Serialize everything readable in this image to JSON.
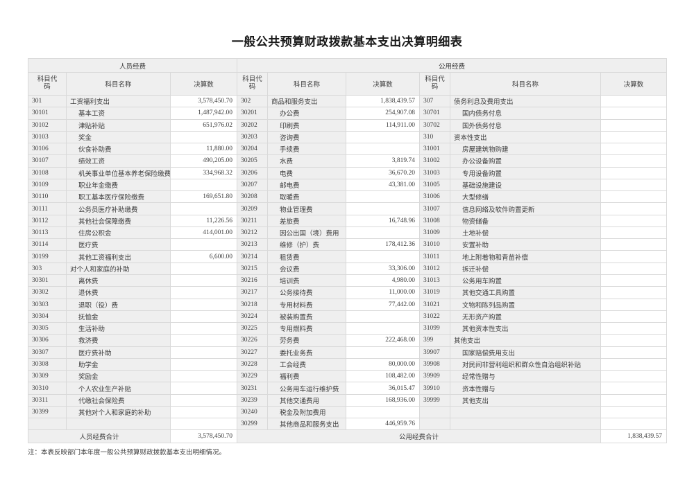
{
  "title": "一般公共预算财政拨款基本支出决算明细表",
  "note": "注：本表反映部门本年度一般公共预算财政拨款基本支出明细情况。",
  "colors": {
    "cell_gray": "#efefef",
    "border": "#d9d9d9",
    "text": "#3c3c3c"
  },
  "table": {
    "sections": [
      {
        "label": "人员经费"
      },
      {
        "label": "公用经费"
      }
    ],
    "column_headers": {
      "code": "科目代码",
      "name": "科目名称",
      "value": "决算数"
    },
    "personnel_rows": [
      {
        "code": "301",
        "name": "工资福利支出",
        "value": "3,578,450.70"
      },
      {
        "code": "30101",
        "name": "基本工资",
        "value": "1,487,942.00"
      },
      {
        "code": "30102",
        "name": "津贴补贴",
        "value": "651,976.02"
      },
      {
        "code": "30103",
        "name": "奖金",
        "value": ""
      },
      {
        "code": "30106",
        "name": "伙食补助费",
        "value": "11,880.00"
      },
      {
        "code": "30107",
        "name": "绩效工资",
        "value": "490,205.00"
      },
      {
        "code": "30108",
        "name": "机关事业单位基本养老保险缴费",
        "value": "334,968.32"
      },
      {
        "code": "30109",
        "name": "职业年金缴费",
        "value": ""
      },
      {
        "code": "30110",
        "name": "职工基本医疗保险缴费",
        "value": "169,651.80"
      },
      {
        "code": "30111",
        "name": "公务员医疗补助缴费",
        "value": ""
      },
      {
        "code": "30112",
        "name": "其他社会保障缴费",
        "value": "11,226.56"
      },
      {
        "code": "30113",
        "name": "住房公积金",
        "value": "414,001.00"
      },
      {
        "code": "30114",
        "name": "医疗费",
        "value": ""
      },
      {
        "code": "30199",
        "name": "其他工资福利支出",
        "value": "6,600.00"
      },
      {
        "code": "303",
        "name": "对个人和家庭的补助",
        "value": ""
      },
      {
        "code": "30301",
        "name": "离休费",
        "value": ""
      },
      {
        "code": "30302",
        "name": "退休费",
        "value": ""
      },
      {
        "code": "30303",
        "name": "退职（役）费",
        "value": ""
      },
      {
        "code": "30304",
        "name": "抚恤金",
        "value": ""
      },
      {
        "code": "30305",
        "name": "生活补助",
        "value": ""
      },
      {
        "code": "30306",
        "name": "救济费",
        "value": ""
      },
      {
        "code": "30307",
        "name": "医疗费补助",
        "value": ""
      },
      {
        "code": "30308",
        "name": "助学金",
        "value": ""
      },
      {
        "code": "30309",
        "name": "奖励金",
        "value": ""
      },
      {
        "code": "30310",
        "name": "个人农业生产补贴",
        "value": ""
      },
      {
        "code": "30311",
        "name": "代缴社会保险费",
        "value": ""
      },
      {
        "code": "30399",
        "name": "其他对个人和家庭的补助",
        "value": ""
      },
      {
        "code": "",
        "name": "",
        "value": ""
      }
    ],
    "public_left_rows": [
      {
        "code": "302",
        "name": "商品和服务支出",
        "value": "1,838,439.57"
      },
      {
        "code": "30201",
        "name": "办公费",
        "value": "254,907.08"
      },
      {
        "code": "30202",
        "name": "印刷费",
        "value": "114,911.00"
      },
      {
        "code": "30203",
        "name": "咨询费",
        "value": ""
      },
      {
        "code": "30204",
        "name": "手续费",
        "value": ""
      },
      {
        "code": "30205",
        "name": "水费",
        "value": "3,819.74"
      },
      {
        "code": "30206",
        "name": "电费",
        "value": "36,670.20"
      },
      {
        "code": "30207",
        "name": "邮电费",
        "value": "43,381.00"
      },
      {
        "code": "30208",
        "name": "取暖费",
        "value": ""
      },
      {
        "code": "30209",
        "name": "物业管理费",
        "value": ""
      },
      {
        "code": "30211",
        "name": "差旅费",
        "value": "16,748.96"
      },
      {
        "code": "30212",
        "name": "因公出国（境）费用",
        "value": ""
      },
      {
        "code": "30213",
        "name": "维修（护）费",
        "value": "178,412.36"
      },
      {
        "code": "30214",
        "name": "租赁费",
        "value": ""
      },
      {
        "code": "30215",
        "name": "会议费",
        "value": "33,306.00"
      },
      {
        "code": "30216",
        "name": "培训费",
        "value": "4,980.00"
      },
      {
        "code": "30217",
        "name": "公务接待费",
        "value": "11,000.00"
      },
      {
        "code": "30218",
        "name": "专用材料费",
        "value": "77,442.00"
      },
      {
        "code": "30224",
        "name": "被装购置费",
        "value": ""
      },
      {
        "code": "30225",
        "name": "专用燃料费",
        "value": ""
      },
      {
        "code": "30226",
        "name": "劳务费",
        "value": "222,468.00"
      },
      {
        "code": "30227",
        "name": "委托业务费",
        "value": ""
      },
      {
        "code": "30228",
        "name": "工会经费",
        "value": "80,000.00"
      },
      {
        "code": "30229",
        "name": "福利费",
        "value": "108,482.00"
      },
      {
        "code": "30231",
        "name": "公务用车运行维护费",
        "value": "36,015.47"
      },
      {
        "code": "30239",
        "name": "其他交通费用",
        "value": "168,936.00"
      },
      {
        "code": "30240",
        "name": "税金及附加费用",
        "value": ""
      },
      {
        "code": "30299",
        "name": "其他商品和服务支出",
        "value": "446,959.76"
      }
    ],
    "public_right_rows": [
      {
        "code": "307",
        "name": "债务利息及费用支出",
        "value": ""
      },
      {
        "code": "30701",
        "name": "国内债务付息",
        "value": ""
      },
      {
        "code": "30702",
        "name": "国外债务付息",
        "value": ""
      },
      {
        "code": "310",
        "name": "资本性支出",
        "value": ""
      },
      {
        "code": "31001",
        "name": "房屋建筑物购建",
        "value": ""
      },
      {
        "code": "31002",
        "name": "办公设备购置",
        "value": ""
      },
      {
        "code": "31003",
        "name": "专用设备购置",
        "value": ""
      },
      {
        "code": "31005",
        "name": "基础设施建设",
        "value": ""
      },
      {
        "code": "31006",
        "name": "大型修缮",
        "value": ""
      },
      {
        "code": "31007",
        "name": "信息网络及软件购置更新",
        "value": ""
      },
      {
        "code": "31008",
        "name": "物资储备",
        "value": ""
      },
      {
        "code": "31009",
        "name": "土地补偿",
        "value": ""
      },
      {
        "code": "31010",
        "name": "安置补助",
        "value": ""
      },
      {
        "code": "31011",
        "name": "地上附着物和青苗补偿",
        "value": ""
      },
      {
        "code": "31012",
        "name": "拆迁补偿",
        "value": ""
      },
      {
        "code": "31013",
        "name": "公务用车购置",
        "value": ""
      },
      {
        "code": "31019",
        "name": "其他交通工具购置",
        "value": ""
      },
      {
        "code": "31021",
        "name": "文物和陈列品购置",
        "value": ""
      },
      {
        "code": "31022",
        "name": "无形资产购置",
        "value": ""
      },
      {
        "code": "31099",
        "name": "其他资本性支出",
        "value": ""
      },
      {
        "code": "399",
        "name": "其他支出",
        "value": ""
      },
      {
        "code": "39907",
        "name": "国家赔偿费用支出",
        "value": ""
      },
      {
        "code": "39908",
        "name": "对民间非营利组织和群众性自治组织补贴",
        "value": ""
      },
      {
        "code": "39909",
        "name": "经常性赠与",
        "value": ""
      },
      {
        "code": "39910",
        "name": "资本性赠与",
        "value": ""
      },
      {
        "code": "39999",
        "name": "其他支出",
        "value": ""
      },
      {
        "code": "",
        "name": "",
        "value": ""
      },
      {
        "code": "",
        "name": "",
        "value": ""
      }
    ],
    "totals": {
      "personnel_label": "人员经费合计",
      "personnel_value": "3,578,450.70",
      "public_label": "公用经费合计",
      "public_value": "1,838,439.57"
    }
  }
}
